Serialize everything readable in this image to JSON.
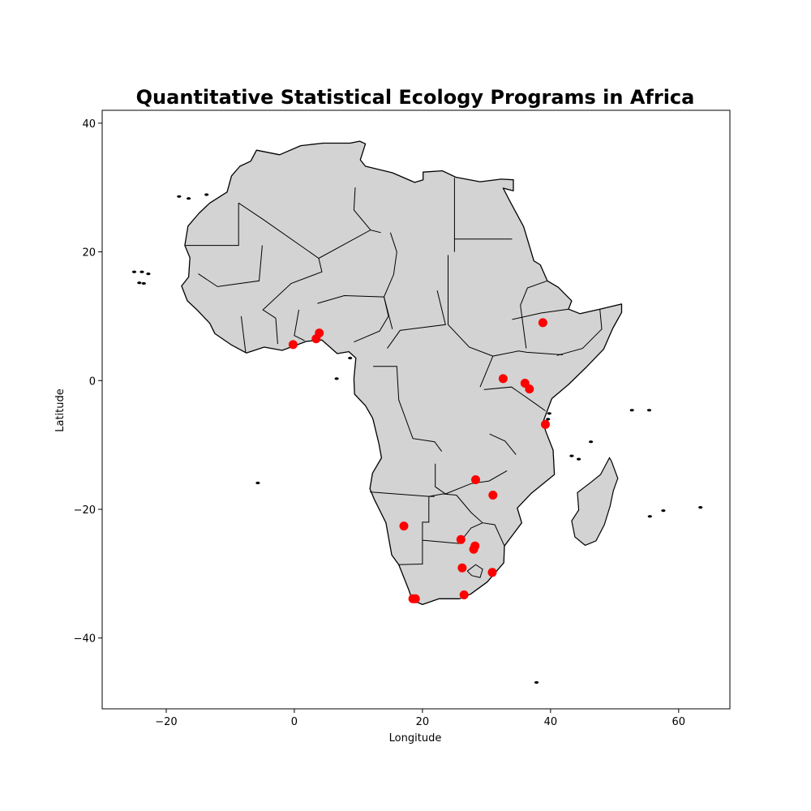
{
  "chart_data": {
    "type": "scatter",
    "title": "Quantitative Statistical Ecology Programs in Africa",
    "xlabel": "Longitude",
    "ylabel": "Latitude",
    "xlim": [
      -30,
      68
    ],
    "ylim": [
      -51,
      42
    ],
    "x_ticks": [
      -20,
      0,
      20,
      40,
      60
    ],
    "y_ticks": [
      -40,
      -20,
      0,
      20,
      40
    ],
    "grid": false,
    "basemap": "Africa country borders, land fill light gray",
    "land_color": "#d3d3d3",
    "border_color": "#000000",
    "marker_color": "#ff0000",
    "points": [
      {
        "x": -0.2,
        "y": 5.6
      },
      {
        "x": 3.4,
        "y": 6.5
      },
      {
        "x": 3.9,
        "y": 7.4
      },
      {
        "x": 38.8,
        "y": 9.0
      },
      {
        "x": 32.6,
        "y": 0.3
      },
      {
        "x": 36.0,
        "y": -0.4
      },
      {
        "x": 36.7,
        "y": -1.3
      },
      {
        "x": 39.2,
        "y": -6.8
      },
      {
        "x": 28.3,
        "y": -15.4
      },
      {
        "x": 31.0,
        "y": -17.8
      },
      {
        "x": 17.1,
        "y": -22.6
      },
      {
        "x": 26.0,
        "y": -24.7
      },
      {
        "x": 28.2,
        "y": -25.7
      },
      {
        "x": 28.0,
        "y": -26.2
      },
      {
        "x": 26.2,
        "y": -29.1
      },
      {
        "x": 30.9,
        "y": -29.8
      },
      {
        "x": 26.5,
        "y": -33.3
      },
      {
        "x": 18.5,
        "y": -33.9
      },
      {
        "x": 18.9,
        "y": -33.9
      }
    ]
  }
}
